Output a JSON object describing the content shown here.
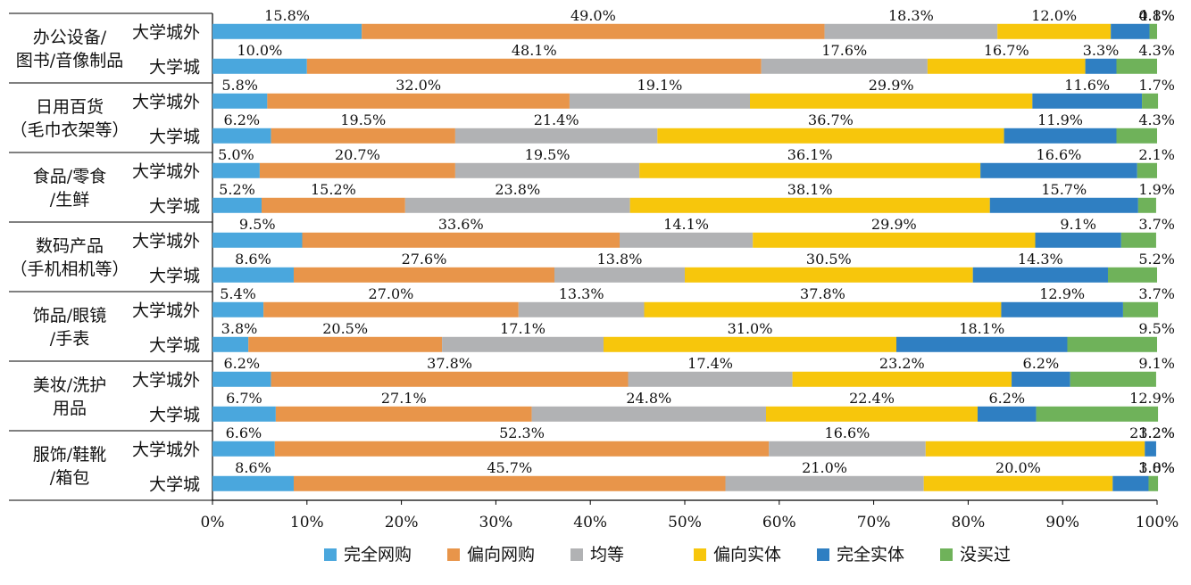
{
  "chart_data": {
    "type": "bar",
    "orientation": "horizontal",
    "stacked": true,
    "normalized": true,
    "xlim": [
      0,
      100
    ],
    "x_ticks": [
      "0%",
      "10%",
      "20%",
      "30%",
      "40%",
      "50%",
      "60%",
      "70%",
      "80%",
      "90%",
      "100%"
    ],
    "grid": false,
    "legend_position": "bottom",
    "legend": [
      {
        "name": "完全网购",
        "color": "#4aa7dd"
      },
      {
        "name": "偏向网购",
        "color": "#e8954a"
      },
      {
        "name": "均等",
        "color": "#b1b2b4"
      },
      {
        "name": "偏向实体",
        "color": "#f7c60c"
      },
      {
        "name": "完全实体",
        "color": "#2f7fc2"
      },
      {
        "name": "没买过",
        "color": "#6fb25a"
      }
    ],
    "groups": [
      {
        "label": [
          "办公设备/",
          "图书/音像制品"
        ],
        "rows": [
          {
            "label": "大学城外",
            "values": [
              15.8,
              49.0,
              18.3,
              12.0,
              4.1,
              0.8
            ],
            "labels": [
              "15.8%",
              "49.0%",
              "18.3%",
              "12.0%",
              "4.1%",
              "0.8%"
            ]
          },
          {
            "label": "大学城",
            "values": [
              10.0,
              48.1,
              17.6,
              16.7,
              3.3,
              4.3
            ],
            "labels": [
              "10.0%",
              "48.1%",
              "17.6%",
              "16.7%",
              "3.3%",
              "4.3%"
            ]
          }
        ]
      },
      {
        "label": [
          "日用百货",
          "（毛巾衣架等）"
        ],
        "rows": [
          {
            "label": "大学城外",
            "values": [
              5.8,
              32.0,
              19.1,
              29.9,
              11.6,
              1.7
            ],
            "labels": [
              "5.8%",
              "32.0%",
              "19.1%",
              "29.9%",
              "11.6%",
              "1.7%"
            ]
          },
          {
            "label": "大学城",
            "values": [
              6.2,
              19.5,
              21.4,
              36.7,
              11.9,
              4.3
            ],
            "labels": [
              "6.2%",
              "19.5%",
              "21.4%",
              "36.7%",
              "11.9%",
              "4.3%"
            ]
          }
        ]
      },
      {
        "label": [
          "食品/零食",
          "/生鲜"
        ],
        "rows": [
          {
            "label": "大学城外",
            "values": [
              5.0,
              20.7,
              19.5,
              36.1,
              16.6,
              2.1
            ],
            "labels": [
              "5.0%",
              "20.7%",
              "19.5%",
              "36.1%",
              "16.6%",
              "2.1%"
            ]
          },
          {
            "label": "大学城",
            "values": [
              5.2,
              15.2,
              23.8,
              38.1,
              15.7,
              1.9
            ],
            "labels": [
              "5.2%",
              "15.2%",
              "23.8%",
              "38.1%",
              "15.7%",
              "1.9%"
            ]
          }
        ]
      },
      {
        "label": [
          "数码产品",
          "（手机相机等）"
        ],
        "rows": [
          {
            "label": "大学城外",
            "values": [
              9.5,
              33.6,
              14.1,
              29.9,
              9.1,
              3.7
            ],
            "labels": [
              "9.5%",
              "33.6%",
              "14.1%",
              "29.9%",
              "9.1%",
              "3.7%"
            ]
          },
          {
            "label": "大学城",
            "values": [
              8.6,
              27.6,
              13.8,
              30.5,
              14.3,
              5.2
            ],
            "labels": [
              "8.6%",
              "27.6%",
              "13.8%",
              "30.5%",
              "14.3%",
              "5.2%"
            ]
          }
        ]
      },
      {
        "label": [
          "饰品/眼镜",
          "/手表"
        ],
        "rows": [
          {
            "label": "大学城外",
            "values": [
              5.4,
              27.0,
              13.3,
              37.8,
              12.9,
              3.7
            ],
            "labels": [
              "5.4%",
              "27.0%",
              "13.3%",
              "37.8%",
              "12.9%",
              "3.7%"
            ]
          },
          {
            "label": "大学城",
            "values": [
              3.8,
              20.5,
              17.1,
              31.0,
              18.1,
              9.5
            ],
            "labels": [
              "3.8%",
              "20.5%",
              "17.1%",
              "31.0%",
              "18.1%",
              "9.5%"
            ]
          }
        ]
      },
      {
        "label": [
          "美妆/洗护",
          "用品"
        ],
        "rows": [
          {
            "label": "大学城外",
            "values": [
              6.2,
              37.8,
              17.4,
              23.2,
              6.2,
              9.1
            ],
            "labels": [
              "6.2%",
              "37.8%",
              "17.4%",
              "23.2%",
              "6.2%",
              "9.1%"
            ]
          },
          {
            "label": "大学城",
            "values": [
              6.7,
              27.1,
              24.8,
              22.4,
              6.2,
              12.9
            ],
            "labels": [
              "6.7%",
              "27.1%",
              "24.8%",
              "22.4%",
              "6.2%",
              "12.9%"
            ]
          }
        ]
      },
      {
        "label": [
          "服饰/鞋靴",
          "/箱包"
        ],
        "rows": [
          {
            "label": "大学城外",
            "values": [
              6.6,
              52.3,
              16.6,
              23.2,
              1.2,
              0
            ],
            "labels": [
              "6.6%",
              "52.3%",
              "16.6%",
              "23.2%",
              "1.2%",
              ""
            ]
          },
          {
            "label": "大学城",
            "values": [
              8.6,
              45.7,
              21.0,
              20.0,
              3.8,
              1.0
            ],
            "labels": [
              "8.6%",
              "45.7%",
              "21.0%",
              "20.0%",
              "3.8%",
              "1.0%"
            ]
          }
        ]
      }
    ]
  }
}
